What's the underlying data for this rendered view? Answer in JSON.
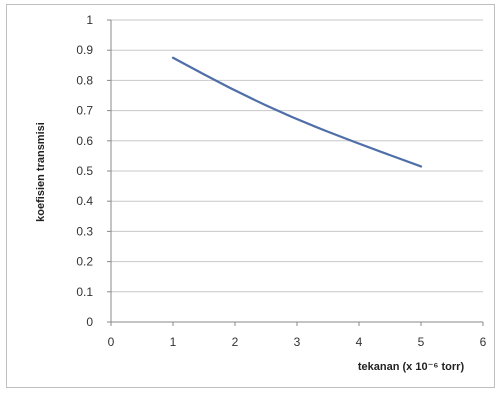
{
  "chart_data": {
    "type": "line",
    "title": "",
    "xlabel": "tekanan (x 10⁻⁶ torr)",
    "ylabel": "koefisien transmisi",
    "xlim": [
      0,
      6
    ],
    "ylim": [
      0,
      1
    ],
    "x_ticks": [
      "0",
      "1",
      "2",
      "3",
      "4",
      "5",
      "6"
    ],
    "y_ticks": [
      "0",
      "0.1",
      "0.2",
      "0.3",
      "0.4",
      "0.5",
      "0.6",
      "0.7",
      "0.8",
      "0.9",
      "1"
    ],
    "grid": "horizontal",
    "legend": "none",
    "series": [
      {
        "color": "#4f6fa8",
        "x": [
          1,
          2,
          3,
          4,
          5
        ],
        "y": [
          0.875,
          0.765,
          0.67,
          0.59,
          0.515
        ]
      }
    ]
  }
}
